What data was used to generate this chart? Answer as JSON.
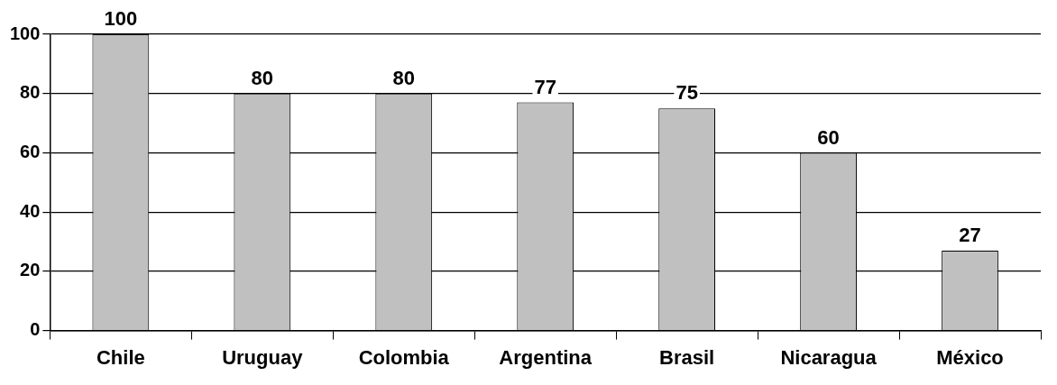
{
  "chart_data": {
    "type": "bar",
    "categories": [
      "Chile",
      "Uruguay",
      "Colombia",
      "Argentina",
      "Brasil",
      "Nicaragua",
      "México"
    ],
    "values": [
      100,
      80,
      80,
      77,
      75,
      60,
      27
    ],
    "color": "#c0c0c0",
    "ylim": [
      0,
      100
    ],
    "yticks": [
      0,
      20,
      40,
      60,
      80,
      100
    ],
    "grid": "y",
    "data_labels": true,
    "legend": false
  }
}
